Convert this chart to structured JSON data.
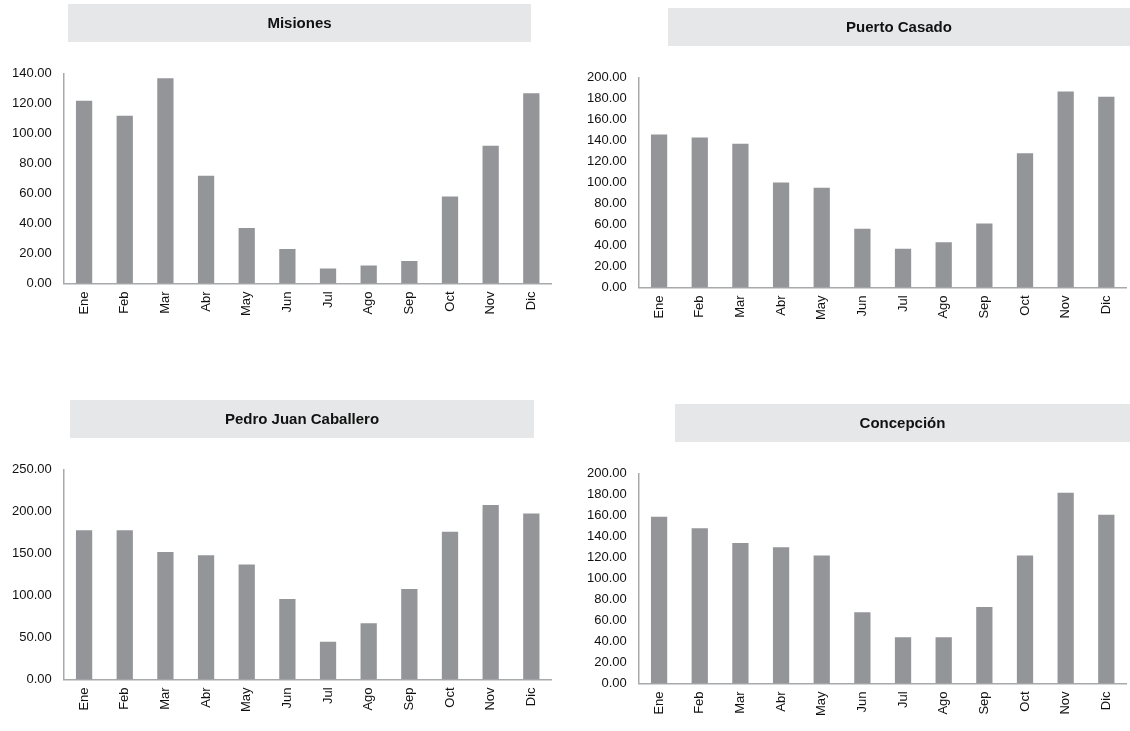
{
  "chart_data": [
    {
      "type": "bar",
      "title": "Misiones",
      "categories": [
        "Ene",
        "Feb",
        "Mar",
        "Abr",
        "May",
        "Jun",
        "Jul",
        "Ago",
        "Sep",
        "Oct",
        "Nov",
        "Dic"
      ],
      "values": [
        122,
        112,
        137,
        72,
        37,
        23,
        10,
        12,
        15,
        58,
        92,
        127
      ],
      "color": "#939598",
      "ylim": [
        0,
        140
      ],
      "yticks": [
        {
          "value": 0,
          "label": "0.00"
        },
        {
          "value": 20,
          "label": "20.00"
        },
        {
          "value": 40,
          "label": "40.00"
        },
        {
          "value": 60,
          "label": "60.00"
        },
        {
          "value": 80,
          "label": "80.00"
        },
        {
          "value": 100,
          "label": "100.00"
        },
        {
          "value": 120,
          "label": "120.00"
        },
        {
          "value": 140,
          "label": "140.00"
        }
      ]
    },
    {
      "type": "bar",
      "title": "Puerto Casado",
      "categories": [
        "Ene",
        "Feb",
        "Mar",
        "Abr",
        "May",
        "Jun",
        "Jul",
        "Ago",
        "Sep",
        "Oct",
        "Nov",
        "Dic"
      ],
      "values": [
        146,
        143,
        137,
        100,
        95,
        56,
        37,
        43,
        61,
        128,
        187,
        182
      ],
      "color": "#939598",
      "ylim": [
        0,
        200
      ],
      "yticks": [
        {
          "value": 0,
          "label": "0.00"
        },
        {
          "value": 20,
          "label": "20.00"
        },
        {
          "value": 40,
          "label": "40.00"
        },
        {
          "value": 60,
          "label": "60.00"
        },
        {
          "value": 80,
          "label": "80.00"
        },
        {
          "value": 100,
          "label": "100.00"
        },
        {
          "value": 120,
          "label": "120.00"
        },
        {
          "value": 140,
          "label": "140.00"
        },
        {
          "value": 160,
          "label": "160.00"
        },
        {
          "value": 180,
          "label": "180.00"
        },
        {
          "value": 200,
          "label": "200.00"
        }
      ]
    },
    {
      "type": "bar",
      "title": "Pedro Juan Caballero",
      "categories": [
        "Ene",
        "Feb",
        "Mar",
        "Abr",
        "May",
        "Jun",
        "Jul",
        "Ago",
        "Sep",
        "Oct",
        "Nov",
        "Dic"
      ],
      "values": [
        178,
        178,
        152,
        148,
        137,
        96,
        45,
        67,
        108,
        176,
        208,
        198
      ],
      "color": "#939598",
      "ylim": [
        0,
        250
      ],
      "yticks": [
        {
          "value": 0,
          "label": "0.00"
        },
        {
          "value": 50,
          "label": "50.00"
        },
        {
          "value": 100,
          "label": "100.00"
        },
        {
          "value": 150,
          "label": "150.00"
        },
        {
          "value": 200,
          "label": "200.00"
        },
        {
          "value": 250,
          "label": "250.00"
        }
      ]
    },
    {
      "type": "bar",
      "title": "Concepción",
      "categories": [
        "Ene",
        "Feb",
        "Mar",
        "Abr",
        "May",
        "Jun",
        "Jul",
        "Ago",
        "Sep",
        "Oct",
        "Nov",
        "Dic"
      ],
      "values": [
        159,
        148,
        134,
        130,
        122,
        68,
        44,
        44,
        73,
        122,
        182,
        161
      ],
      "color": "#939598",
      "ylim": [
        0,
        200
      ],
      "yticks": [
        {
          "value": 0,
          "label": "0.00"
        },
        {
          "value": 20,
          "label": "20.00"
        },
        {
          "value": 40,
          "label": "40.00"
        },
        {
          "value": 60,
          "label": "60.00"
        },
        {
          "value": 80,
          "label": "80.00"
        },
        {
          "value": 100,
          "label": "100.00"
        },
        {
          "value": 120,
          "label": "120.00"
        },
        {
          "value": 140,
          "label": "140.00"
        },
        {
          "value": 160,
          "label": "160.00"
        },
        {
          "value": 180,
          "label": "180.00"
        },
        {
          "value": 200,
          "label": "200.00"
        }
      ]
    }
  ]
}
